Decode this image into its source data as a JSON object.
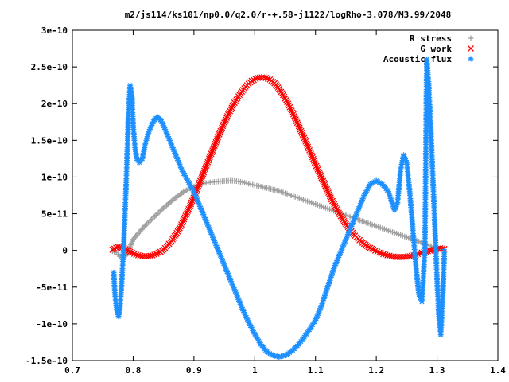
{
  "chart_data": {
    "type": "scatter",
    "title": "m2/js114/ks101/np0.0/q2.0/r-+.58-j1122/logRho-3.078/M3.99/2048",
    "xlabel": "",
    "ylabel": "",
    "xlim": [
      0.7,
      1.4
    ],
    "ylim": [
      -1.5e-10,
      3e-10
    ],
    "x_ticks": [
      "0.7",
      "0.8",
      "0.9",
      "1",
      "1.1",
      "1.2",
      "1.3",
      "1.4"
    ],
    "y_ticks": [
      "-1.5e-10",
      "-1e-10",
      "-5e-11",
      "0",
      "5e-11",
      "1e-10",
      "1.5e-10",
      "2e-10",
      "2.5e-10",
      "3e-10"
    ],
    "grid": false,
    "legend_position": "top-right",
    "series": [
      {
        "name": "R stress",
        "marker": "plus",
        "color": "#a0a0a0",
        "x": [
          0.766,
          0.772,
          0.778,
          0.785,
          0.79,
          0.795,
          0.8,
          0.81,
          0.82,
          0.83,
          0.84,
          0.85,
          0.86,
          0.87,
          0.88,
          0.89,
          0.9,
          0.91,
          0.92,
          0.93,
          0.94,
          0.95,
          0.96,
          0.97,
          0.98,
          0.99,
          1.0,
          1.01,
          1.02,
          1.03,
          1.04,
          1.05,
          1.06,
          1.07,
          1.08,
          1.09,
          1.1,
          1.11,
          1.12,
          1.13,
          1.14,
          1.15,
          1.16,
          1.17,
          1.18,
          1.19,
          1.2,
          1.21,
          1.22,
          1.23,
          1.24,
          1.25,
          1.26,
          1.27,
          1.28,
          1.29,
          1.3,
          1.31
        ],
        "y": [
          -1e-12,
          -3e-12,
          -8e-12,
          -1e-11,
          -5e-12,
          5e-12,
          1.5e-11,
          2.5e-11,
          3.4e-11,
          4.2e-11,
          5e-11,
          5.8e-11,
          6.5e-11,
          7.2e-11,
          7.8e-11,
          8.3e-11,
          8.7e-11,
          9e-11,
          9.2e-11,
          9.3e-11,
          9.4e-11,
          9.45e-11,
          9.5e-11,
          9.45e-11,
          9.3e-11,
          9.1e-11,
          8.9e-11,
          8.7e-11,
          8.5e-11,
          8.3e-11,
          8.1e-11,
          7.8e-11,
          7.5e-11,
          7.2e-11,
          6.9e-11,
          6.6e-11,
          6.3e-11,
          6e-11,
          5.7e-11,
          5.4e-11,
          5.1e-11,
          4.8e-11,
          4.5e-11,
          4.2e-11,
          3.9e-11,
          3.6e-11,
          3.3e-11,
          3e-11,
          2.7e-11,
          2.4e-11,
          2.1e-11,
          1.8e-11,
          1.5e-11,
          1.2e-11,
          9e-12,
          6e-12,
          3e-12,
          1e-12
        ]
      },
      {
        "name": "G work",
        "marker": "cross",
        "color": "#ff0000",
        "x": [
          0.766,
          0.775,
          0.785,
          0.795,
          0.805,
          0.815,
          0.825,
          0.835,
          0.845,
          0.855,
          0.865,
          0.875,
          0.885,
          0.895,
          0.905,
          0.915,
          0.925,
          0.935,
          0.945,
          0.955,
          0.965,
          0.975,
          0.985,
          0.995,
          1.005,
          1.015,
          1.025,
          1.035,
          1.045,
          1.055,
          1.065,
          1.075,
          1.085,
          1.095,
          1.105,
          1.115,
          1.125,
          1.135,
          1.145,
          1.155,
          1.165,
          1.175,
          1.185,
          1.195,
          1.205,
          1.215,
          1.225,
          1.235,
          1.245,
          1.255,
          1.265,
          1.275,
          1.285,
          1.295,
          1.305,
          1.312
        ],
        "y": [
          1e-12,
          5e-12,
          3e-12,
          -2e-12,
          -6e-12,
          -8e-12,
          -8e-12,
          -6e-12,
          -2e-12,
          5e-12,
          1.5e-11,
          2.8e-11,
          4.5e-11,
          6.3e-11,
          8.3e-11,
          1.04e-10,
          1.25e-10,
          1.45e-10,
          1.65e-10,
          1.83e-10,
          1.99e-10,
          2.12e-10,
          2.23e-10,
          2.31e-10,
          2.35e-10,
          2.36e-10,
          2.33e-10,
          2.26e-10,
          2.14e-10,
          2e-10,
          1.83e-10,
          1.65e-10,
          1.46e-10,
          1.27e-10,
          1.08e-10,
          9e-11,
          7.2e-11,
          5.6e-11,
          4.2e-11,
          3e-11,
          2e-11,
          1.2e-11,
          6e-12,
          1e-12,
          -3e-12,
          -6e-12,
          -8e-12,
          -9e-12,
          -9e-12,
          -8e-12,
          -6e-12,
          -3e-12,
          -1e-12,
          1e-12,
          3e-12,
          2e-12
        ]
      },
      {
        "name": "Acoustic flux",
        "marker": "star",
        "color": "#1e90ff",
        "x": [
          0.768,
          0.77,
          0.772,
          0.774,
          0.776,
          0.778,
          0.78,
          0.782,
          0.784,
          0.786,
          0.788,
          0.79,
          0.792,
          0.795,
          0.798,
          0.8,
          0.803,
          0.806,
          0.81,
          0.815,
          0.82,
          0.825,
          0.83,
          0.835,
          0.84,
          0.845,
          0.85,
          0.855,
          0.86,
          0.865,
          0.87,
          0.875,
          0.88,
          0.885,
          0.89,
          0.9,
          0.91,
          0.92,
          0.93,
          0.94,
          0.95,
          0.96,
          0.97,
          0.98,
          0.99,
          1.0,
          1.01,
          1.02,
          1.03,
          1.04,
          1.05,
          1.06,
          1.07,
          1.08,
          1.09,
          1.1,
          1.11,
          1.12,
          1.13,
          1.14,
          1.15,
          1.16,
          1.17,
          1.18,
          1.19,
          1.2,
          1.21,
          1.22,
          1.23,
          1.235,
          1.24,
          1.245,
          1.25,
          1.255,
          1.26,
          1.265,
          1.27,
          1.275,
          1.28,
          1.283,
          1.286,
          1.29,
          1.293,
          1.296,
          1.3,
          1.303,
          1.306,
          1.31,
          1.312
        ],
        "y": [
          -3e-11,
          -6e-11,
          -7.5e-11,
          -8.5e-11,
          -9e-11,
          -8e-11,
          -6e-11,
          -3e-11,
          0,
          4e-11,
          8e-11,
          1.3e-10,
          1.8e-10,
          2.25e-10,
          2.1e-10,
          1.7e-10,
          1.4e-10,
          1.25e-10,
          1.2e-10,
          1.25e-10,
          1.45e-10,
          1.6e-10,
          1.7e-10,
          1.78e-10,
          1.82e-10,
          1.78e-10,
          1.7e-10,
          1.6e-10,
          1.5e-10,
          1.4e-10,
          1.3e-10,
          1.2e-10,
          1.1e-10,
          1.02e-10,
          9.5e-11,
          8e-11,
          6e-11,
          4e-11,
          2e-11,
          0,
          -2e-11,
          -4e-11,
          -6e-11,
          -8e-11,
          -9.8e-11,
          -1.14e-10,
          -1.28e-10,
          -1.38e-10,
          -1.43e-10,
          -1.45e-10,
          -1.43e-10,
          -1.38e-10,
          -1.3e-10,
          -1.2e-10,
          -1.08e-10,
          -9.5e-11,
          -7.5e-11,
          -5e-11,
          -2.5e-11,
          -5e-12,
          1.5e-11,
          3.5e-11,
          5.5e-11,
          7.5e-11,
          9e-11,
          9.5e-11,
          9e-11,
          8e-11,
          5.5e-11,
          6.5e-11,
          1.1e-10,
          1.3e-10,
          1.2e-10,
          8e-11,
          3e-11,
          -2e-11,
          -6e-11,
          -7e-11,
          0,
          2.6e-10,
          2.3e-10,
          1.6e-10,
          1e-10,
          4e-11,
          -4e-11,
          -9e-11,
          -1.15e-10,
          -5e-11,
          -1e-12
        ]
      }
    ]
  }
}
